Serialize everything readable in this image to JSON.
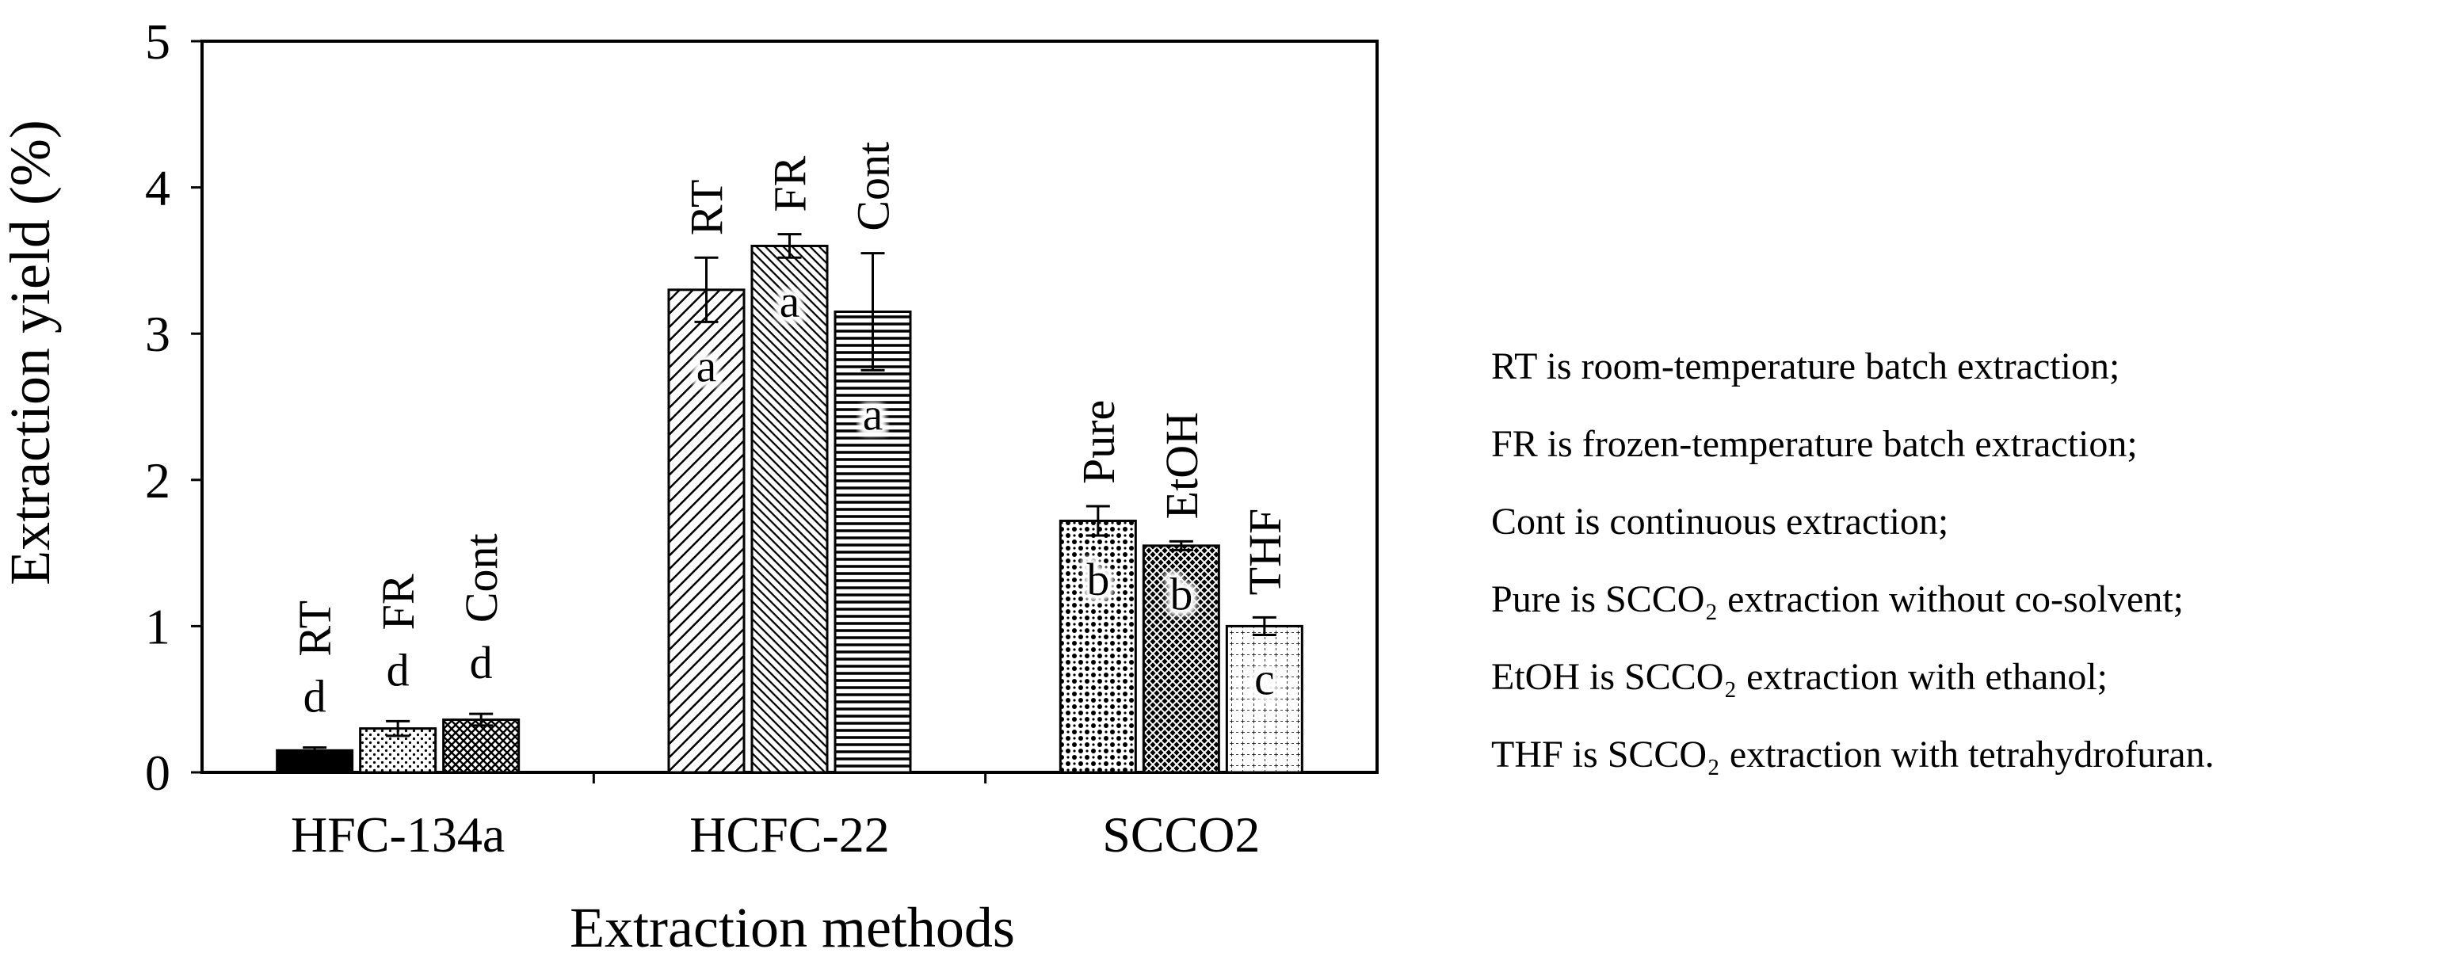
{
  "chart_data": {
    "type": "bar",
    "ylabel": "Extraction yield (%)",
    "xlabel": "Extraction methods",
    "ylim": [
      0,
      5
    ],
    "yticks": [
      "0",
      "1",
      "2",
      "3",
      "4",
      "5"
    ],
    "grid": false,
    "groups": [
      {
        "label": "HFC-134a",
        "bars": [
          {
            "name": "RT",
            "value": 0.15,
            "error": 0.02,
            "letter": "d",
            "pattern": "solid",
            "letter_inside": false
          },
          {
            "name": "FR",
            "value": 0.3,
            "error": 0.05,
            "letter": "d",
            "pattern": "dots",
            "letter_inside": false
          },
          {
            "name": "Cont",
            "value": 0.36,
            "error": 0.04,
            "letter": "d",
            "pattern": "crosshatch",
            "letter_inside": false
          }
        ]
      },
      {
        "label": "HCFC-22",
        "bars": [
          {
            "name": "RT",
            "value": 3.3,
            "error": 0.22,
            "letter": "a",
            "pattern": "diagonal",
            "letter_inside": true
          },
          {
            "name": "FR",
            "value": 3.6,
            "error": 0.08,
            "letter": "a",
            "pattern": "diagonal-dense",
            "letter_inside": true
          },
          {
            "name": "Cont",
            "value": 3.15,
            "error": 0.4,
            "letter": "a",
            "pattern": "horizontal",
            "letter_inside": true
          }
        ]
      },
      {
        "label": "SCCO2",
        "bars": [
          {
            "name": "Pure",
            "value": 1.72,
            "error": 0.1,
            "letter": "b",
            "pattern": "coarse-dots",
            "letter_inside": true
          },
          {
            "name": "EtOH",
            "value": 1.55,
            "error": 0.03,
            "letter": "b",
            "pattern": "checker",
            "letter_inside": true
          },
          {
            "name": "THF",
            "value": 1.0,
            "error": 0.06,
            "letter": "c",
            "pattern": "grid",
            "letter_inside": true
          }
        ]
      }
    ],
    "legend_placement": "right",
    "legend_notes": [
      "RT is room-temperature batch extraction;",
      "FR is frozen-temperature batch extraction;",
      "Cont is continuous extraction;",
      "Pure is SCCO₂ extraction without co-solvent;",
      "EtOH is SCCO₂ extraction with ethanol;",
      "THF is SCCO₂ extraction with tetrahydrofuran."
    ]
  }
}
